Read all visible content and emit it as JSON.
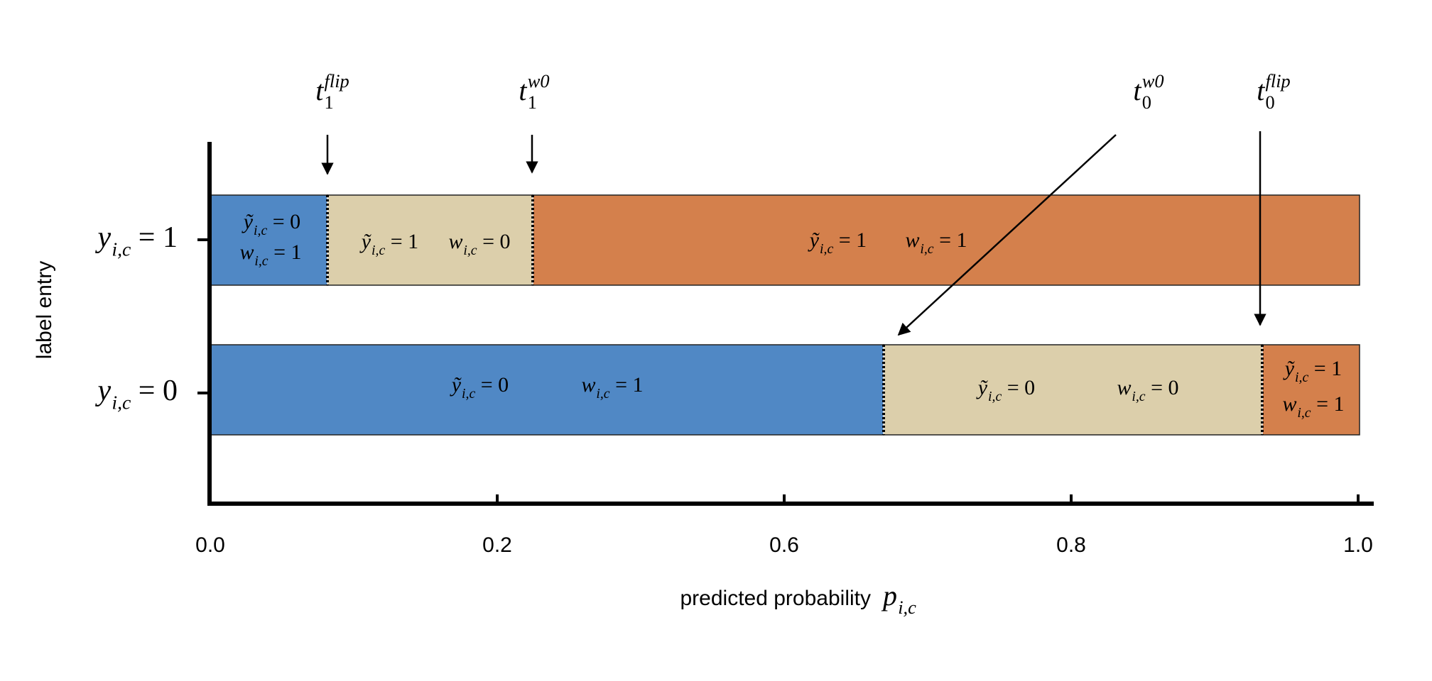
{
  "y_axis": {
    "label": "label entry",
    "rows": [
      {
        "sym": "y",
        "sub": "i,c",
        "rhs": "= 1"
      },
      {
        "sym": "y",
        "sub": "i,c",
        "rhs": "= 0"
      }
    ]
  },
  "x_axis": {
    "ticks": [
      "0.0",
      "0.2",
      "0.6",
      "0.8",
      "1.0"
    ],
    "label": "predicted probability",
    "symbol": {
      "sym": "p",
      "sub": "i,c"
    }
  },
  "thresholds": [
    {
      "sym": "t",
      "sub": "1",
      "sup": "flip"
    },
    {
      "sym": "t",
      "sub": "1",
      "sup": "w0"
    },
    {
      "sym": "t",
      "sub": "0",
      "sup": "w0"
    },
    {
      "sym": "t",
      "sub": "0",
      "sup": "flip"
    }
  ],
  "rows": [
    {
      "segments": [
        {
          "labels": [
            {
              "sym": "ỹ",
              "sub": "i,c",
              "rhs": "= 0"
            },
            {
              "sym": "w",
              "sub": "i,c",
              "rhs": "= 1"
            }
          ]
        },
        {
          "labels": [
            {
              "sym": "ỹ",
              "sub": "i,c",
              "rhs": "= 1"
            },
            {
              "sym": "w",
              "sub": "i,c",
              "rhs": "= 0"
            }
          ]
        },
        {
          "labels": [
            {
              "sym": "ỹ",
              "sub": "i,c",
              "rhs": "= 1"
            },
            {
              "sym": "w",
              "sub": "i,c",
              "rhs": "= 1"
            }
          ]
        }
      ]
    },
    {
      "segments": [
        {
          "labels": [
            {
              "sym": "ỹ",
              "sub": "i,c",
              "rhs": "= 0"
            },
            {
              "sym": "w",
              "sub": "i,c",
              "rhs": "= 1"
            }
          ]
        },
        {
          "labels": [
            {
              "sym": "ỹ",
              "sub": "i,c",
              "rhs": "= 0"
            },
            {
              "sym": "w",
              "sub": "i,c",
              "rhs": "= 0"
            }
          ]
        },
        {
          "labels": [
            {
              "sym": "ỹ",
              "sub": "i,c",
              "rhs": "= 1"
            },
            {
              "sym": "w",
              "sub": "i,c",
              "rhs": "= 1"
            }
          ]
        }
      ]
    }
  ]
}
